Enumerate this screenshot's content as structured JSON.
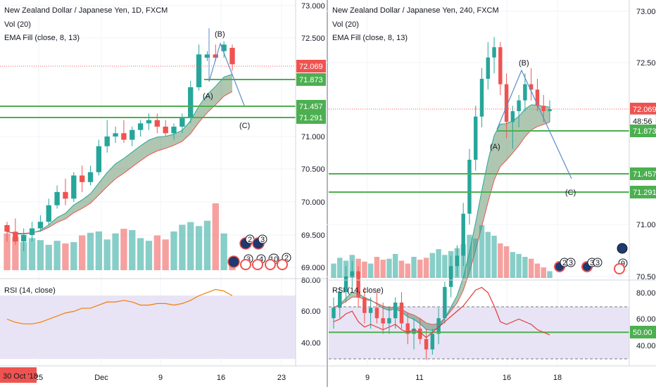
{
  "colors": {
    "bull": "#26a69a",
    "bear": "#ef5350",
    "line": "#4caf50",
    "rsi": "#f57c00",
    "ema_fill": "#1b5e20",
    "arrow": "#5b8dc9",
    "tag_red": "#ef5350",
    "tag_green": "#4caf50",
    "rsi_band": "#e8e4f5"
  },
  "left_pane": {
    "title": "New Zealand Dollar / Japanese Yen, 1D, FXCM",
    "vol_label": "Vol (20)",
    "ema_label": "EMA Fill (close, 8, 13)",
    "rsi_label": "RSI (14, close)",
    "price_ticks": [
      "73.000",
      "72.500",
      "71.000",
      "70.500",
      "70.000",
      "69.500",
      "69.000"
    ],
    "price_tags": [
      {
        "value": "72.069",
        "kind": "red"
      },
      {
        "value": "71.873",
        "kind": "green"
      },
      {
        "value": "71.457",
        "kind": "green"
      },
      {
        "value": "71.291",
        "kind": "green"
      }
    ],
    "rsi_ticks": [
      "80.00",
      "60.00",
      "40.00"
    ],
    "date_ticks": [
      "25",
      "Dec",
      "9",
      "16",
      "23"
    ],
    "date_badge": "30 Oct '18",
    "wave_labels": [
      "(A)",
      "(B)",
      "(C)"
    ],
    "event_counts": [
      "2",
      "3",
      "3",
      "4",
      "10",
      "2"
    ]
  },
  "right_pane": {
    "title": "New Zealand Dollar / Japanese Yen, 240, FXCM",
    "vol_label": "Vol (20)",
    "ema_label": "EMA Fill (close, 8, 13)",
    "rsi_label": "RSI (14, close)",
    "price_ticks": [
      "73.000",
      "72.500",
      "71.000",
      "70.500"
    ],
    "price_tags": [
      {
        "value": "72.069",
        "kind": "red"
      },
      {
        "value": "48:56",
        "kind": "countdown"
      },
      {
        "value": "71.873",
        "kind": "green"
      },
      {
        "value": "71.457",
        "kind": "green"
      },
      {
        "value": "71.291",
        "kind": "green"
      }
    ],
    "rsi_ticks": [
      "80.00",
      "60.00",
      "50.00",
      "40.00"
    ],
    "date_ticks": [
      "9",
      "11",
      "16",
      "18"
    ],
    "wave_labels": [
      "(A)",
      "(B)",
      "(C)"
    ],
    "event_counts": [
      "2",
      "3",
      "3",
      "3",
      "9"
    ]
  },
  "chart_data": [
    {
      "type": "candlestick",
      "title": "New Zealand Dollar / Japanese Yen, 1D, FXCM",
      "ylim": [
        68.95,
        73.05
      ],
      "candles": [
        [
          69.65,
          69.7,
          69.4,
          69.55
        ],
        [
          69.55,
          69.75,
          69.35,
          69.4
        ],
        [
          69.4,
          69.6,
          69.25,
          69.5
        ],
        [
          69.5,
          69.7,
          69.4,
          69.6
        ],
        [
          69.6,
          69.8,
          69.55,
          69.7
        ],
        [
          69.7,
          70.05,
          69.65,
          69.95
        ],
        [
          69.95,
          70.25,
          69.9,
          70.15
        ],
        [
          70.15,
          70.35,
          69.95,
          70.05
        ],
        [
          70.05,
          70.45,
          70.0,
          70.4
        ],
        [
          70.4,
          70.55,
          70.15,
          70.3
        ],
        [
          70.3,
          70.55,
          70.25,
          70.45
        ],
        [
          70.45,
          70.95,
          70.4,
          70.85
        ],
        [
          70.85,
          71.25,
          70.75,
          71.0
        ],
        [
          71.0,
          71.15,
          70.9,
          71.05
        ],
        [
          71.05,
          71.25,
          70.9,
          70.95
        ],
        [
          70.95,
          71.15,
          70.85,
          71.1
        ],
        [
          71.1,
          71.25,
          71.0,
          71.2
        ],
        [
          71.2,
          71.35,
          71.1,
          71.25
        ],
        [
          71.25,
          71.35,
          71.05,
          71.15
        ],
        [
          71.15,
          71.25,
          71.0,
          71.05
        ],
        [
          71.05,
          71.2,
          70.95,
          71.15
        ],
        [
          71.15,
          71.35,
          71.05,
          71.3
        ],
        [
          71.3,
          71.85,
          71.2,
          71.75
        ],
        [
          71.75,
          72.4,
          71.7,
          72.25
        ],
        [
          72.2,
          72.3,
          72.15,
          72.25
        ],
        [
          72.25,
          72.4,
          72.15,
          72.2
        ],
        [
          72.3,
          72.45,
          72.2,
          72.4
        ],
        [
          72.35,
          72.4,
          72.0,
          72.1
        ]
      ],
      "volume": [
        55,
        50,
        42,
        48,
        45,
        38,
        44,
        40,
        42,
        52,
        56,
        58,
        46,
        55,
        62,
        60,
        48,
        44,
        52,
        46,
        58,
        68,
        72,
        66,
        74,
        100,
        55,
        20
      ],
      "rsi": [
        55,
        53,
        52,
        52,
        53,
        55,
        57,
        59,
        60,
        62,
        62,
        64,
        66,
        66,
        67,
        66,
        64,
        64,
        65,
        65,
        64,
        65,
        67,
        70,
        72,
        74,
        73,
        70
      ],
      "levels": [
        72.069,
        71.873,
        71.457,
        71.291
      ]
    },
    {
      "type": "candlestick",
      "title": "New Zealand Dollar / Japanese Yen, 240, FXCM",
      "ylim": [
        69.1,
        73.05
      ],
      "candles": [
        [
          70.1,
          70.3,
          70.0,
          70.2
        ],
        [
          70.2,
          70.4,
          70.1,
          70.35
        ],
        [
          70.35,
          70.6,
          70.25,
          70.5
        ],
        [
          70.5,
          70.65,
          70.4,
          70.55
        ],
        [
          70.55,
          70.6,
          70.2,
          70.3
        ],
        [
          70.3,
          70.4,
          70.05,
          70.15
        ],
        [
          70.15,
          70.3,
          70.0,
          70.2
        ],
        [
          70.2,
          70.35,
          70.05,
          70.1
        ],
        [
          70.1,
          70.25,
          69.95,
          70.05
        ],
        [
          70.05,
          70.2,
          69.95,
          70.1
        ],
        [
          70.1,
          70.3,
          70.0,
          70.25
        ],
        [
          70.25,
          70.35,
          70.0,
          70.05
        ],
        [
          70.05,
          70.15,
          69.85,
          69.95
        ],
        [
          69.95,
          70.1,
          69.8,
          70.0
        ],
        [
          70.0,
          70.1,
          69.85,
          69.9
        ],
        [
          69.9,
          70.0,
          69.7,
          69.8
        ],
        [
          69.8,
          70.0,
          69.75,
          69.95
        ],
        [
          69.95,
          70.2,
          69.85,
          70.1
        ],
        [
          70.1,
          70.45,
          70.05,
          70.4
        ],
        [
          70.4,
          70.7,
          70.3,
          70.6
        ],
        [
          70.6,
          70.8,
          70.5,
          70.7
        ],
        [
          70.7,
          71.2,
          70.6,
          71.1
        ],
        [
          71.1,
          71.7,
          71.0,
          71.6
        ],
        [
          71.6,
          72.1,
          71.5,
          72.0
        ],
        [
          72.0,
          72.45,
          71.9,
          72.35
        ],
        [
          72.35,
          72.7,
          72.25,
          72.55
        ],
        [
          72.55,
          72.75,
          72.4,
          72.65
        ],
        [
          72.65,
          72.7,
          72.2,
          72.3
        ],
        [
          72.3,
          72.4,
          71.8,
          71.95
        ],
        [
          71.95,
          72.1,
          71.7,
          72.05
        ],
        [
          72.05,
          72.2,
          71.9,
          72.15
        ],
        [
          72.15,
          72.4,
          72.05,
          72.3
        ],
        [
          72.3,
          72.45,
          72.15,
          72.25
        ],
        [
          72.25,
          72.35,
          72.05,
          72.1
        ],
        [
          72.1,
          72.2,
          71.95,
          72.05
        ],
        [
          72.05,
          72.15,
          71.95,
          72.069
        ]
      ],
      "volume": [
        30,
        42,
        36,
        48,
        40,
        34,
        30,
        44,
        38,
        40,
        50,
        36,
        30,
        44,
        38,
        42,
        52,
        60,
        48,
        56,
        62,
        70,
        90,
        82,
        110,
        96,
        88,
        72,
        66,
        54,
        50,
        44,
        40,
        30,
        22,
        14
      ],
      "rsi": [
        58,
        60,
        64,
        66,
        58,
        54,
        56,
        54,
        52,
        54,
        56,
        52,
        50,
        52,
        50,
        46,
        50,
        54,
        58,
        62,
        66,
        70,
        76,
        82,
        84,
        80,
        70,
        58,
        56,
        58,
        60,
        58,
        56,
        52,
        50,
        48
      ],
      "levels": [
        72.069,
        71.873,
        71.457,
        71.291
      ]
    }
  ]
}
